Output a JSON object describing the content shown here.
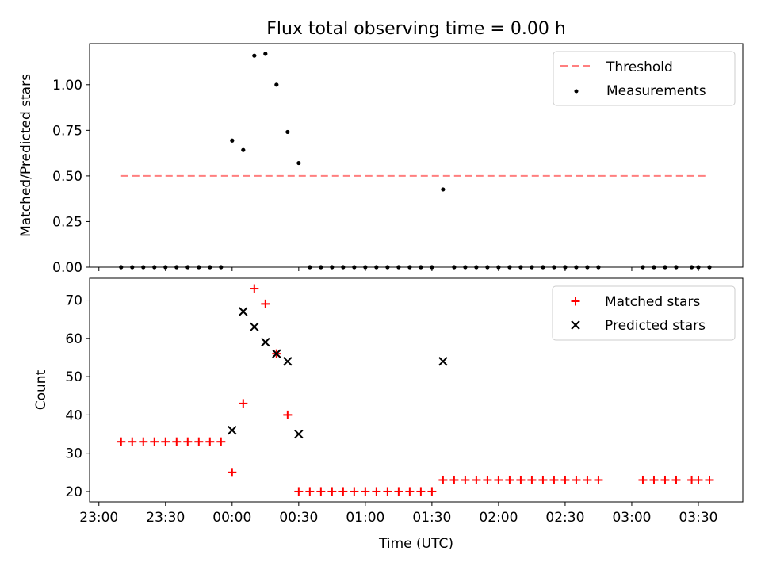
{
  "chart_data": [
    {
      "type": "scatter",
      "title": "Flux total observing time = 0.00 h",
      "xlabel": "",
      "ylabel": "Matched/Predicted stars",
      "xlim": [
        "23:00",
        "03:50"
      ],
      "ylim": [
        0,
        1.2
      ],
      "yticks": [
        "0.00",
        "0.25",
        "0.50",
        "0.75",
        "1.00"
      ],
      "legend": {
        "position": "top-right",
        "entries": [
          "Threshold",
          "Measurements"
        ]
      },
      "threshold": {
        "name": "Threshold",
        "value": 0.5,
        "x_range": [
          "23:10",
          "03:35"
        ],
        "color": "#ff7f7f"
      },
      "series": [
        {
          "name": "Measurements",
          "color": "#000000",
          "points": [
            [
              "23:10",
              0
            ],
            [
              "23:15",
              0
            ],
            [
              "23:20",
              0
            ],
            [
              "23:25",
              0
            ],
            [
              "23:30",
              0
            ],
            [
              "23:35",
              0
            ],
            [
              "23:40",
              0
            ],
            [
              "23:45",
              0
            ],
            [
              "23:50",
              0
            ],
            [
              "23:55",
              0
            ],
            [
              "00:00",
              0.694
            ],
            [
              "00:05",
              0.642
            ],
            [
              "00:10",
              1.159
            ],
            [
              "00:15",
              1.169
            ],
            [
              "00:20",
              1.0
            ],
            [
              "00:25",
              0.741
            ],
            [
              "00:30",
              0.571
            ],
            [
              "00:35",
              0
            ],
            [
              "00:40",
              0
            ],
            [
              "00:45",
              0
            ],
            [
              "00:50",
              0
            ],
            [
              "00:55",
              0
            ],
            [
              "01:00",
              0
            ],
            [
              "01:05",
              0
            ],
            [
              "01:10",
              0
            ],
            [
              "01:15",
              0
            ],
            [
              "01:20",
              0
            ],
            [
              "01:25",
              0
            ],
            [
              "01:30",
              0
            ],
            [
              "01:35",
              0.426
            ],
            [
              "01:40",
              0
            ],
            [
              "01:45",
              0
            ],
            [
              "01:50",
              0
            ],
            [
              "01:55",
              0
            ],
            [
              "02:00",
              0
            ],
            [
              "02:05",
              0
            ],
            [
              "02:10",
              0
            ],
            [
              "02:15",
              0
            ],
            [
              "02:20",
              0
            ],
            [
              "02:25",
              0
            ],
            [
              "02:30",
              0
            ],
            [
              "02:35",
              0
            ],
            [
              "02:40",
              0
            ],
            [
              "02:45",
              0
            ],
            [
              "03:05",
              0
            ],
            [
              "03:10",
              0
            ],
            [
              "03:15",
              0
            ],
            [
              "03:20",
              0
            ],
            [
              "03:27",
              0
            ],
            [
              "03:30",
              0
            ],
            [
              "03:35",
              0
            ]
          ]
        }
      ]
    },
    {
      "type": "scatter",
      "title": "",
      "xlabel": "Time (UTC)",
      "ylabel": "Count",
      "xlim": [
        "23:00",
        "03:50"
      ],
      "ylim": [
        17.3,
        75.7
      ],
      "yticks": [
        20,
        30,
        40,
        50,
        60,
        70
      ],
      "xticks": [
        "23:00",
        "23:30",
        "00:00",
        "00:30",
        "01:00",
        "01:30",
        "02:00",
        "02:30",
        "03:00",
        "03:30"
      ],
      "legend": {
        "position": "top-right",
        "entries": [
          "Matched stars",
          "Predicted stars"
        ]
      },
      "series": [
        {
          "name": "Matched stars",
          "marker": "plus",
          "color": "#ff0000",
          "points": [
            [
              "23:10",
              33
            ],
            [
              "23:15",
              33
            ],
            [
              "23:20",
              33
            ],
            [
              "23:25",
              33
            ],
            [
              "23:30",
              33
            ],
            [
              "23:35",
              33
            ],
            [
              "23:40",
              33
            ],
            [
              "23:45",
              33
            ],
            [
              "23:50",
              33
            ],
            [
              "23:55",
              33
            ],
            [
              "00:00",
              25
            ],
            [
              "00:05",
              43
            ],
            [
              "00:10",
              73
            ],
            [
              "00:15",
              69
            ],
            [
              "00:20",
              56
            ],
            [
              "00:25",
              40
            ],
            [
              "00:30",
              20
            ],
            [
              "00:35",
              20
            ],
            [
              "00:40",
              20
            ],
            [
              "00:45",
              20
            ],
            [
              "00:50",
              20
            ],
            [
              "00:55",
              20
            ],
            [
              "01:00",
              20
            ],
            [
              "01:05",
              20
            ],
            [
              "01:10",
              20
            ],
            [
              "01:15",
              20
            ],
            [
              "01:20",
              20
            ],
            [
              "01:25",
              20
            ],
            [
              "01:30",
              20
            ],
            [
              "01:35",
              23
            ],
            [
              "01:40",
              23
            ],
            [
              "01:45",
              23
            ],
            [
              "01:50",
              23
            ],
            [
              "01:55",
              23
            ],
            [
              "02:00",
              23
            ],
            [
              "02:05",
              23
            ],
            [
              "02:10",
              23
            ],
            [
              "02:15",
              23
            ],
            [
              "02:20",
              23
            ],
            [
              "02:25",
              23
            ],
            [
              "02:30",
              23
            ],
            [
              "02:35",
              23
            ],
            [
              "02:40",
              23
            ],
            [
              "02:45",
              23
            ],
            [
              "03:05",
              23
            ],
            [
              "03:10",
              23
            ],
            [
              "03:15",
              23
            ],
            [
              "03:20",
              23
            ],
            [
              "03:27",
              23
            ],
            [
              "03:30",
              23
            ],
            [
              "03:35",
              23
            ]
          ]
        },
        {
          "name": "Predicted stars",
          "marker": "x",
          "color": "#000000",
          "points": [
            [
              "00:00",
              36
            ],
            [
              "00:05",
              67
            ],
            [
              "00:10",
              63
            ],
            [
              "00:15",
              59
            ],
            [
              "00:20",
              56
            ],
            [
              "00:25",
              54
            ],
            [
              "00:30",
              35
            ],
            [
              "01:35",
              54
            ]
          ]
        }
      ]
    }
  ]
}
